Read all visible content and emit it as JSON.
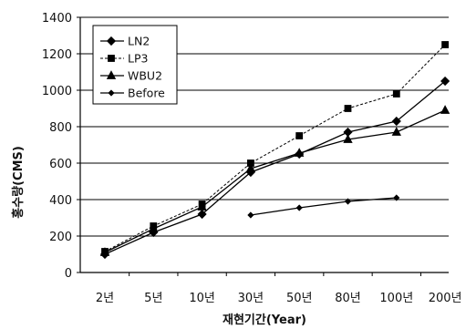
{
  "chart_data": {
    "type": "line",
    "title": "",
    "xlabel": "재현기간(Year)",
    "ylabel": "홍수량(CMS)",
    "ylim": [
      0,
      1400
    ],
    "yticks": [
      0,
      200,
      400,
      600,
      800,
      1000,
      1200,
      1400
    ],
    "categories": [
      "2년",
      "5년",
      "10년",
      "30년",
      "50년",
      "80년",
      "100년",
      "200년"
    ],
    "grid": true,
    "legend_position": "top-left",
    "series": [
      {
        "name": "LN2",
        "marker": "diamond",
        "dash": "solid",
        "color": "#000000",
        "values": [
          100,
          220,
          320,
          550,
          650,
          770,
          830,
          1050
        ]
      },
      {
        "name": "LP3",
        "marker": "square",
        "dash": "dashed",
        "color": "#000000",
        "values": [
          115,
          255,
          375,
          600,
          750,
          900,
          980,
          1250
        ]
      },
      {
        "name": "WBU2",
        "marker": "triangle",
        "dash": "solid",
        "color": "#000000",
        "values": [
          110,
          240,
          360,
          570,
          655,
          730,
          770,
          890
        ]
      },
      {
        "name": "Before",
        "marker": "small-diamond",
        "dash": "solid",
        "color": "#000000",
        "values": [
          null,
          null,
          null,
          315,
          355,
          390,
          410,
          null
        ]
      }
    ]
  }
}
